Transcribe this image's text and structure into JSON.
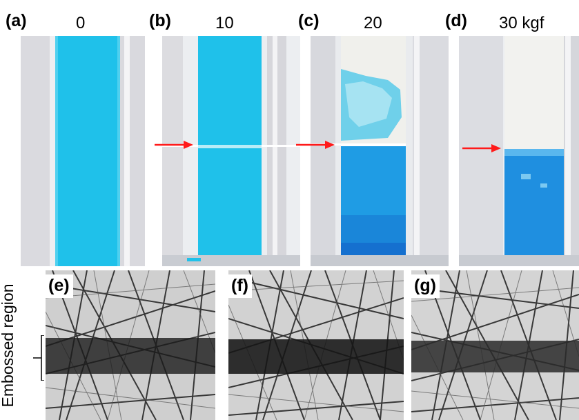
{
  "top_row": {
    "panels": [
      {
        "label": "(a)",
        "force": "0",
        "type": "intact"
      },
      {
        "label": "(b)",
        "force": "10",
        "type": "line"
      },
      {
        "label": "(c)",
        "force": "20",
        "type": "partial"
      },
      {
        "label": "(d)",
        "force": "30 kgf",
        "type": "separated"
      }
    ]
  },
  "bottom_row": {
    "side_label": "Embossed region",
    "panels": [
      {
        "label": "(e)"
      },
      {
        "label": "(f)"
      },
      {
        "label": "(g)"
      }
    ]
  },
  "colors": {
    "strip_blue": "#1fc1ea",
    "deep_blue": "#1a86d9",
    "arrow_red": "#ff1a1a",
    "paper_white": "#f1f1ee",
    "background_gray": "#e7e7ea"
  }
}
